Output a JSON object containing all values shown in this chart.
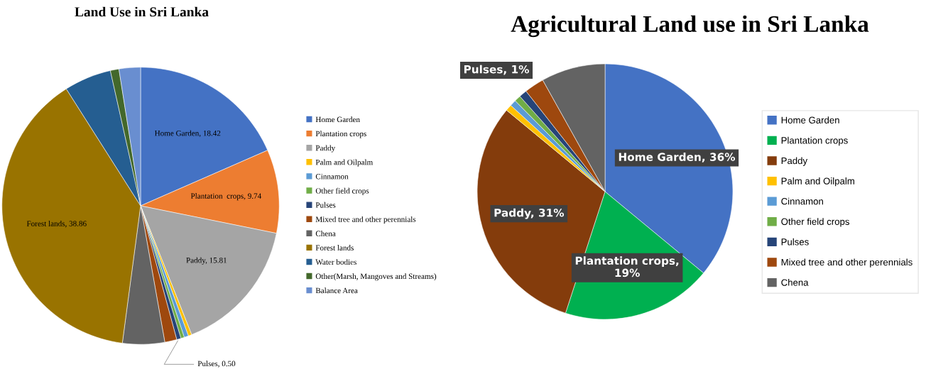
{
  "chart_data": [
    {
      "type": "pie",
      "title": "Land Use in Sri Lanka",
      "legend": "right",
      "categories": [
        "Home Garden",
        "Plantation crops",
        "Paddy",
        "Palm and Oilpalm",
        "Cinnamon",
        "Other field crops",
        "Pulses",
        "Mixed tree and other perennials",
        "Chena",
        "Forest lands",
        "Water bodies",
        "Other(Marsh, Mangoves and Streams)",
        "Balance Area"
      ],
      "values": [
        18.42,
        9.74,
        15.81,
        0.4,
        0.5,
        0.4,
        0.5,
        1.4,
        4.9,
        38.86,
        5.5,
        1.0,
        2.5
      ],
      "colors": [
        "#4472c4",
        "#ed7d31",
        "#a5a5a5",
        "#ffc000",
        "#5b9bd5",
        "#70ad47",
        "#264478",
        "#9e480e",
        "#636363",
        "#997300",
        "#255e91",
        "#43682b",
        "#698ed0"
      ],
      "value_labels": [
        "Home Garden, 18.42",
        "Plantation  crops, 9.74",
        "Paddy, 15.81",
        null,
        null,
        null,
        "Pulses, 0.50",
        null,
        null,
        "Forest lands, 38.86",
        null,
        null,
        null
      ]
    },
    {
      "type": "pie",
      "title": "Agricultural Land use in Sri Lanka",
      "legend": "right",
      "categories": [
        "Home Garden",
        "Plantation crops",
        "Paddy",
        "Palm and Oilpalm",
        "Cinnamon",
        "Other field crops",
        "Pulses",
        "Mixed tree and other perennials",
        "Chena"
      ],
      "values": [
        36,
        19,
        31,
        0.8,
        0.8,
        0.8,
        1,
        2.5,
        8.1
      ],
      "colors": [
        "#4472c4",
        "#00b050",
        "#843c0c",
        "#ffc000",
        "#5b9bd5",
        "#70ad47",
        "#264478",
        "#9e480e",
        "#636363"
      ],
      "value_labels": [
        "Home Garden, 36%",
        "Plantation crops,\n19%",
        "Paddy, 31%",
        null,
        null,
        null,
        "Pulses, 1%",
        null,
        null
      ]
    }
  ]
}
